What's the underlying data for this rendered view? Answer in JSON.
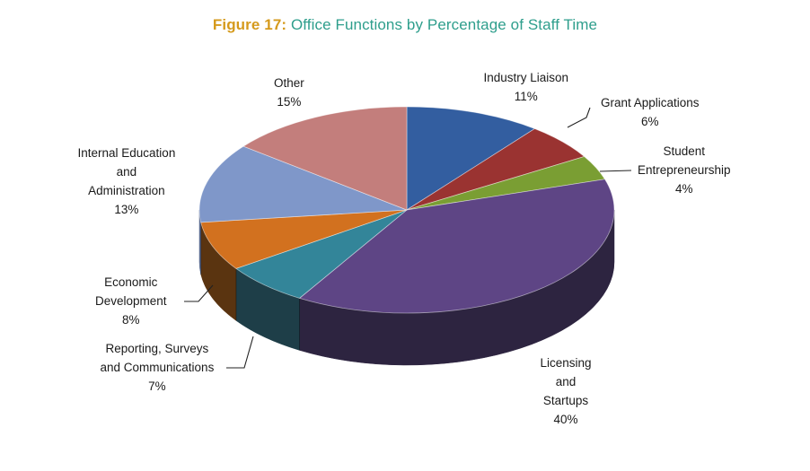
{
  "title": {
    "prefix": "Figure 17:",
    "text": "Office Functions by Percentage of Staff Time"
  },
  "chart_data": {
    "type": "pie",
    "title": "Figure 17: Office Functions by Percentage of Staff Time",
    "three_d": true,
    "slices": [
      {
        "lines": [
          "Industry Liaison"
        ],
        "pct_label": "11%",
        "value": 11,
        "color": "#335ea0",
        "side": "#23416f"
      },
      {
        "lines": [
          "Grant Applications"
        ],
        "pct_label": "6%",
        "value": 6,
        "color": "#9a3331",
        "side": "#6b2221"
      },
      {
        "lines": [
          "Student",
          "Entrepreneurship"
        ],
        "pct_label": "4%",
        "value": 4,
        "color": "#7a9e33",
        "side": "#55702a"
      },
      {
        "lines": [
          "Licensing",
          "and",
          "Startups"
        ],
        "pct_label": "40%",
        "value": 40,
        "color": "#5e4585",
        "side": "#2d2440"
      },
      {
        "lines": [
          "Reporting, Surveys",
          "and Communications"
        ],
        "pct_label": "7%",
        "value": 7,
        "color": "#338599",
        "side": "#1e3e48"
      },
      {
        "lines": [
          "Economic",
          "Development"
        ],
        "pct_label": "8%",
        "value": 8,
        "color": "#d2711f",
        "side": "#5a3410"
      },
      {
        "lines": [
          "Internal Education",
          "and",
          "Administration"
        ],
        "pct_label": "13%",
        "value": 13,
        "color": "#7f97c9",
        "side": "#5a6b8f"
      },
      {
        "lines": [
          "Other"
        ],
        "pct_label": "15%",
        "value": 15,
        "color": "#c37e7c",
        "side": "#8a5958"
      }
    ]
  }
}
